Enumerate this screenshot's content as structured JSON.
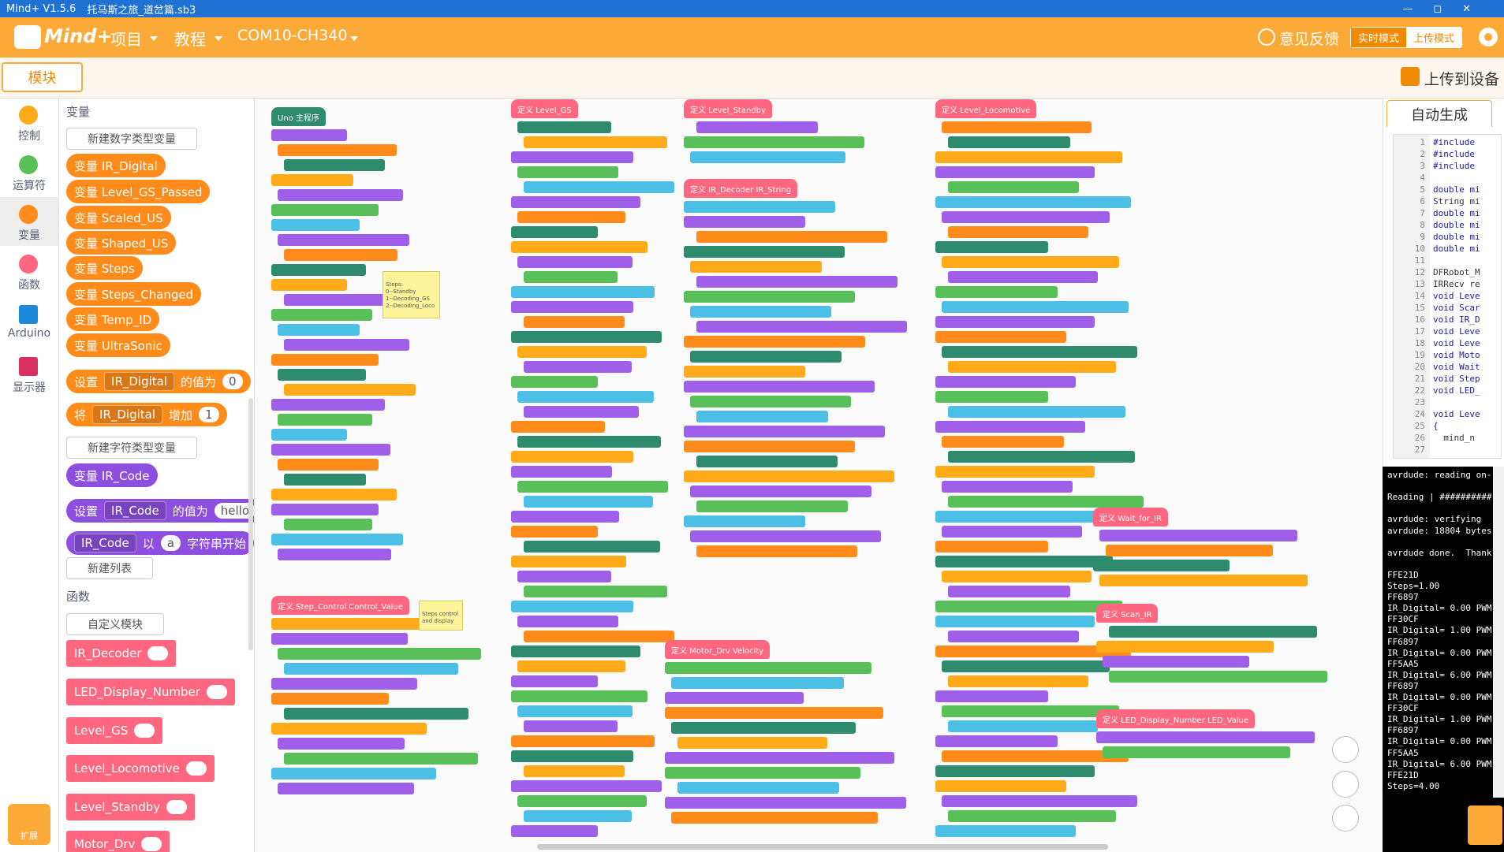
{
  "title_bar": {
    "app": "Mind+ V1.5.6",
    "file": "托马斯之旅_道岔篇.sb3"
  },
  "menu": {
    "logo": "Mind+",
    "project": "项目",
    "tutorial": "教程",
    "port": "COM10-CH340",
    "feedback": "意见反馈",
    "live_mode": "实时模式",
    "upload_mode": "上传模式"
  },
  "tabs": {
    "blocks": "模块",
    "upload": "上传到设备",
    "auto_code": "自动生成"
  },
  "categories": [
    "控制",
    "运算符",
    "变量",
    "函数",
    "Arduino",
    "显示器"
  ],
  "extension": "扩展",
  "palette": {
    "var_heading": "变量",
    "new_number_var": "新建数字类型变量",
    "number_vars": [
      "变量 IR_Digital",
      "变量 Level_GS_Passed",
      "变量 Scaled_US",
      "变量 Shaped_US",
      "变量 Steps",
      "变量 Steps_Changed",
      "变量 Temp_ID",
      "变量 UltraSonic"
    ],
    "set_block": [
      "设置",
      "IR_Digital",
      "的值为",
      "0"
    ],
    "change_block": [
      "将",
      "IR_Digital",
      "增加",
      "1"
    ],
    "new_string_var": "新建字符类型变量",
    "string_var": "变量 IR_Code",
    "set_string_block": [
      "设置",
      "IR_Code",
      "的值为",
      "hello"
    ],
    "starts_with_block": [
      "IR_Code",
      "以",
      "a",
      "字符串开始"
    ],
    "new_list": "新建列表",
    "func_heading": "函数",
    "custom_block": "自定义模块",
    "functions": [
      "IR_Decoder",
      "LED_Display_Number",
      "Level_GS",
      "Level_Locomotive",
      "Level_Standby",
      "Motor_Drv"
    ]
  },
  "workspace": {
    "scripts": [
      "Uno 主程序",
      "定义 Level_GS",
      "定义 Level_Standby",
      "定义 IR_Decoder IR_String",
      "定义 Level_Locomotive",
      "定义 Step_Control Control_Value",
      "定义 Motor_Drv Velocity",
      "定义 Wait_for_IR",
      "定义 Scan_IR",
      "定义 LED_Display_Number LED_Value"
    ],
    "comments": [
      [
        "Steps:",
        "0--Standby",
        "1--Decoding_GS",
        "2--Decoding_Loco"
      ],
      [
        "Steps control",
        "and display"
      ]
    ]
  },
  "code": {
    "line_numbers": [
      1,
      2,
      3,
      4,
      5,
      6,
      7,
      8,
      9,
      10,
      11,
      12,
      13,
      14,
      15,
      16,
      17,
      18,
      19,
      20,
      21,
      22,
      23,
      24,
      25,
      26,
      27
    ],
    "lines": [
      "#include",
      "#include",
      "#include",
      null,
      "double mi",
      "String mi",
      "double mi",
      "double mi",
      "double mi",
      "double mi",
      null,
      "DFRobot_M",
      "IRRecv re",
      "void Leve",
      "void Scar",
      "void IR_D",
      "void Leve",
      "void Leve",
      "void Moto",
      "void Wait",
      "void Step",
      "void LED_",
      null,
      "void Leve",
      "{",
      "  mind_n",
      null
    ]
  },
  "serial": {
    "lines": [
      "avrdude: reading on-",
      null,
      "Reading | ##########",
      null,
      "avrdude: verifying",
      "avrdude: 18804 bytes",
      null,
      "avrdude done.  Thank",
      null,
      "FFE21D",
      "Steps=1.00",
      "FF6897",
      "IR_Digital= 0.00 PWM",
      "FF30CF",
      "IR_Digital= 1.00 PWM",
      "FF6897",
      "IR_Digital= 0.00 PWM",
      "FF5AA5",
      "IR_Digital= 6.00 PWM",
      "FF6897",
      "IR_Digital= 0.00 PWM",
      "FF30CF",
      "IR_Digital= 1.00 PWM",
      "FF6897",
      "IR_Digital= 0.00 PWM",
      "FF5AA5",
      "IR_Digital= 6.00 PWM",
      "FFE21D",
      "Steps=4.00"
    ]
  }
}
